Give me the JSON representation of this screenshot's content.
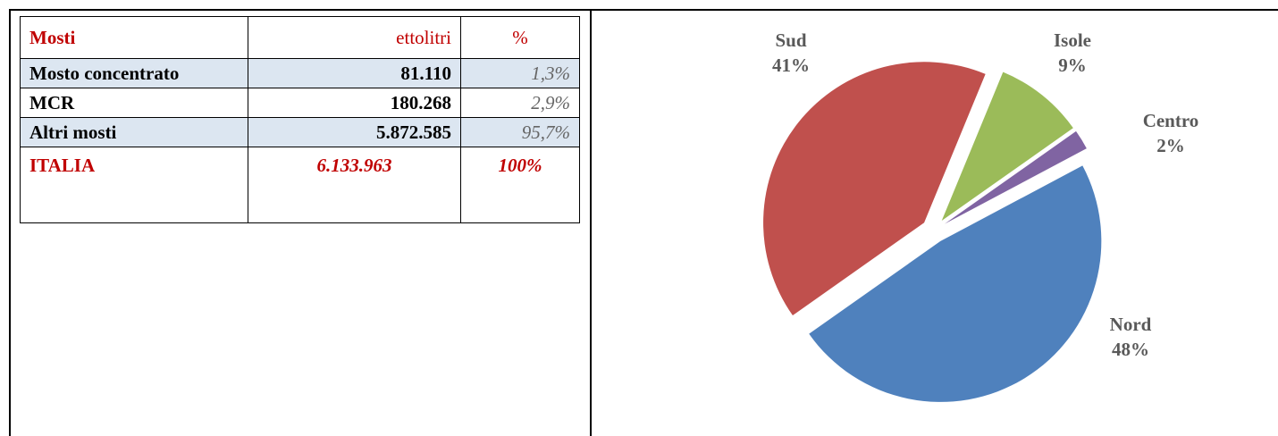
{
  "table": {
    "header": [
      "Mosti",
      "ettolitri",
      "%"
    ],
    "rows": [
      [
        "Mosto concentrato",
        "81.110",
        "1,3%"
      ],
      [
        "MCR",
        "180.268",
        "2,9%"
      ],
      [
        "Altri mosti",
        "5.872.585",
        "95,7%"
      ]
    ],
    "total": [
      "ITALIA",
      "6.133.963",
      "100%"
    ]
  },
  "chart_data": {
    "type": "pie",
    "categories": [
      "Nord",
      "Sud",
      "Isole",
      "Centro"
    ],
    "values": [
      48,
      41,
      9,
      2
    ],
    "value_labels": [
      "48%",
      "41%",
      "9%",
      "2%"
    ],
    "colors": [
      "#4f81bd",
      "#c0504d",
      "#9bbb59",
      "#8064a2"
    ]
  }
}
